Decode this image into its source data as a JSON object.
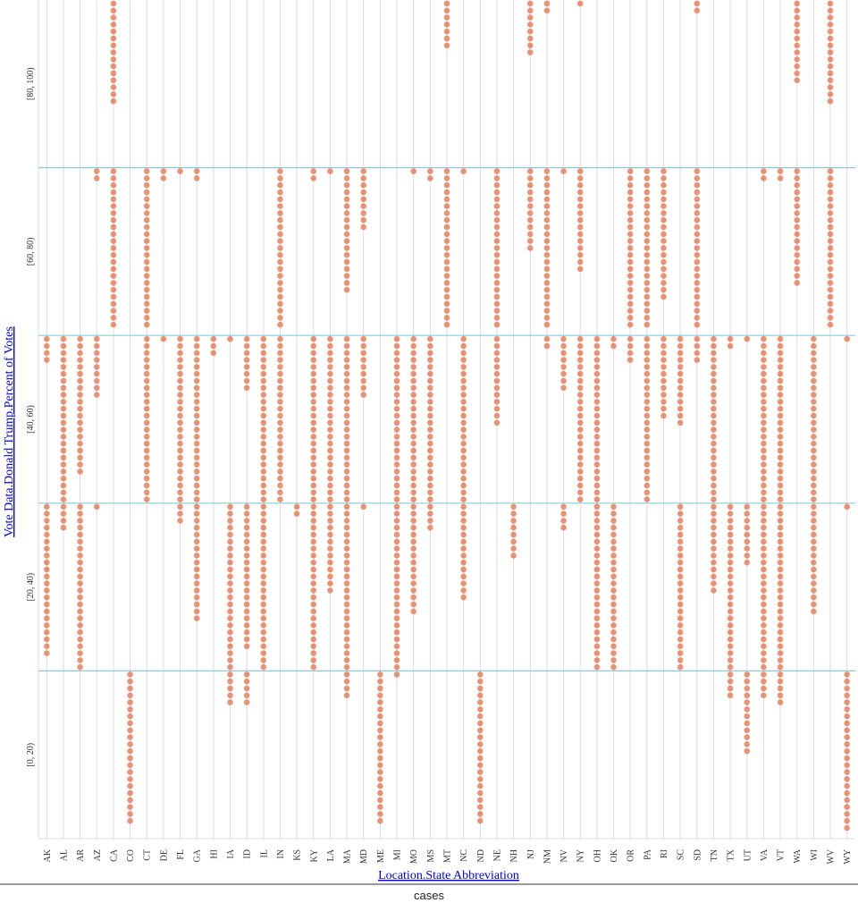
{
  "footer": {
    "label": "cases"
  },
  "chart_data": {
    "type": "scatter",
    "xlabel": "Location.State Abbreviation",
    "ylabel": "Vote Data.Donald Trump.Percent of Votes",
    "y_bins": [
      "[0, 20)",
      "[20, 40)",
      "[40, 60)",
      "[60, 80)",
      "[80, 100)"
    ],
    "x": [
      "AK",
      "AL",
      "AR",
      "AZ",
      "CA",
      "CO",
      "CT",
      "DE",
      "FL",
      "GA",
      "HI",
      "IA",
      "ID",
      "IL",
      "IN",
      "KS",
      "KY",
      "LA",
      "MA",
      "MD",
      "ME",
      "MI",
      "MO",
      "MS",
      "MT",
      "NC",
      "ND",
      "NE",
      "NH",
      "NJ",
      "NM",
      "NV",
      "NY",
      "OH",
      "OK",
      "OR",
      "PA",
      "RI",
      "SC",
      "SD",
      "TN",
      "TX",
      "UT",
      "VA",
      "VT",
      "WA",
      "WI",
      "WV",
      "WY"
    ],
    "dot_color": "#e4704a",
    "grid_color": "#dcdcdc",
    "band_color": "#8ec9d8",
    "note": "Each dot represents one county (case). counts[state] = number of counties in bins [0-20, 20-40, 40-60, 60-80, 80-100].",
    "counts": {
      "AK": [
        0,
        22,
        4,
        0,
        0
      ],
      "AL": [
        0,
        4,
        24,
        0,
        0
      ],
      "AR": [
        0,
        24,
        20,
        0,
        0
      ],
      "AZ": [
        0,
        1,
        9,
        2,
        0
      ],
      "CA": [
        0,
        0,
        0,
        23,
        15
      ],
      "CO": [
        22,
        0,
        0,
        0,
        0
      ],
      "CT": [
        0,
        0,
        24,
        23,
        0
      ],
      "DE": [
        0,
        0,
        1,
        2,
        0
      ],
      "FL": [
        0,
        3,
        24,
        1,
        0
      ],
      "GA": [
        0,
        17,
        24,
        2,
        0
      ],
      "HI": [
        0,
        0,
        3,
        0,
        0
      ],
      "IA": [
        5,
        24,
        1,
        0,
        0
      ],
      "ID": [
        5,
        21,
        8,
        0,
        0
      ],
      "IL": [
        0,
        24,
        24,
        0,
        0
      ],
      "IN": [
        0,
        0,
        24,
        23,
        0
      ],
      "KS": [
        0,
        2,
        0,
        0,
        0
      ],
      "KY": [
        0,
        24,
        24,
        2,
        0
      ],
      "LA": [
        0,
        13,
        24,
        1,
        0
      ],
      "MA": [
        4,
        24,
        24,
        18,
        0
      ],
      "MD": [
        0,
        1,
        9,
        9,
        0
      ],
      "ME": [
        22,
        0,
        0,
        0,
        0
      ],
      "MI": [
        1,
        24,
        24,
        0,
        0
      ],
      "MO": [
        0,
        16,
        24,
        1,
        0
      ],
      "MS": [
        0,
        4,
        24,
        2,
        0
      ],
      "MT": [
        0,
        0,
        0,
        23,
        7
      ],
      "NC": [
        0,
        14,
        24,
        1,
        0
      ],
      "ND": [
        22,
        0,
        0,
        0,
        0
      ],
      "NE": [
        0,
        0,
        13,
        23,
        0
      ],
      "NH": [
        0,
        8,
        0,
        0,
        0
      ],
      "NJ": [
        0,
        0,
        0,
        12,
        8
      ],
      "NM": [
        0,
        0,
        2,
        23,
        2
      ],
      "NV": [
        0,
        4,
        8,
        1,
        0
      ],
      "NY": [
        0,
        0,
        24,
        15,
        1
      ],
      "OH": [
        0,
        24,
        24,
        0,
        0
      ],
      "OK": [
        0,
        24,
        2,
        0,
        0
      ],
      "OR": [
        0,
        0,
        4,
        23,
        0
      ],
      "PA": [
        0,
        0,
        24,
        23,
        0
      ],
      "RI": [
        0,
        0,
        12,
        19,
        0
      ],
      "SC": [
        0,
        24,
        13,
        0,
        0
      ],
      "SD": [
        0,
        0,
        4,
        23,
        2
      ],
      "TN": [
        0,
        13,
        24,
        0,
        0
      ],
      "TX": [
        4,
        24,
        2,
        0,
        0
      ],
      "UT": [
        12,
        9,
        1,
        0,
        0
      ],
      "VA": [
        4,
        24,
        24,
        2,
        0
      ],
      "VT": [
        5,
        24,
        24,
        2,
        0
      ],
      "WA": [
        0,
        0,
        0,
        17,
        12
      ],
      "WI": [
        0,
        16,
        24,
        0,
        0
      ],
      "WV": [
        0,
        0,
        0,
        23,
        15
      ],
      "WY": [
        23,
        1,
        1,
        0,
        0
      ]
    }
  }
}
